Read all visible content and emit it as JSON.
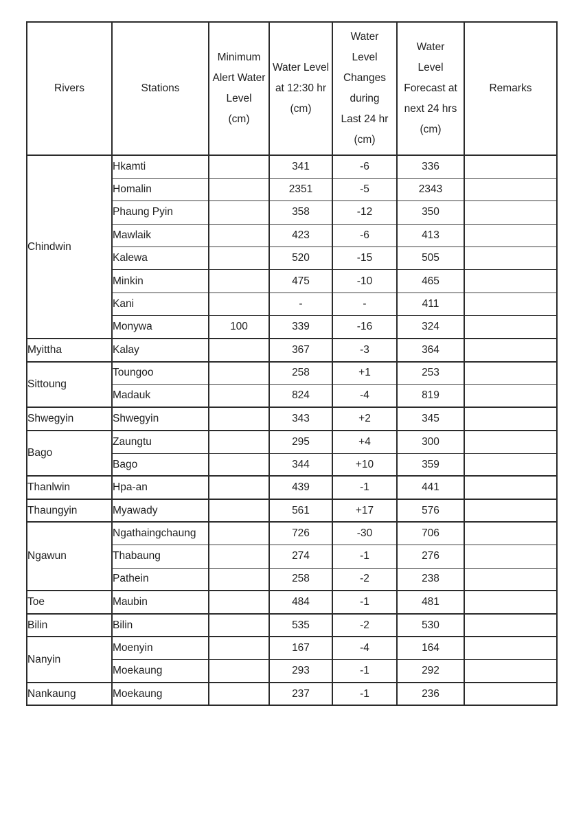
{
  "colors": {
    "background": "#ffffff",
    "border": "#2b2b2b",
    "text": "#1f1f1f"
  },
  "table": {
    "headers": [
      {
        "id": "rivers",
        "label": "Rivers"
      },
      {
        "id": "stations",
        "label": "Stations"
      },
      {
        "id": "min_alert",
        "label": "Minimum\nAlert Water\nLevel\n(cm)"
      },
      {
        "id": "water_level",
        "label": "Water Level\nat 12:30 hr\n(cm)"
      },
      {
        "id": "changes",
        "label": "Water\nLevel\nChanges\nduring\nLast 24 hr\n(cm)"
      },
      {
        "id": "forecast",
        "label": "Water\nLevel\nForecast at\nnext 24 hrs\n(cm)"
      },
      {
        "id": "remarks",
        "label": "Remarks"
      }
    ],
    "groups": [
      {
        "river": "Chindwin",
        "rows": [
          {
            "station": "Hkamti",
            "min_alert": "",
            "water_level": "341",
            "change": "-6",
            "forecast": "336",
            "remarks": ""
          },
          {
            "station": "Homalin",
            "min_alert": "",
            "water_level": "2351",
            "change": "-5",
            "forecast": "2343",
            "remarks": ""
          },
          {
            "station": "Phaung Pyin",
            "min_alert": "",
            "water_level": "358",
            "change": "-12",
            "forecast": "350",
            "remarks": ""
          },
          {
            "station": "Mawlaik",
            "min_alert": "",
            "water_level": "423",
            "change": "-6",
            "forecast": "413",
            "remarks": ""
          },
          {
            "station": "Kalewa",
            "min_alert": "",
            "water_level": "520",
            "change": "-15",
            "forecast": "505",
            "remarks": ""
          },
          {
            "station": "Minkin",
            "min_alert": "",
            "water_level": "475",
            "change": "-10",
            "forecast": "465",
            "remarks": ""
          },
          {
            "station": "Kani",
            "min_alert": "",
            "water_level": "-",
            "change": "-",
            "forecast": "411",
            "remarks": ""
          },
          {
            "station": "Monywa",
            "min_alert": "100",
            "water_level": "339",
            "change": "-16",
            "forecast": "324",
            "remarks": ""
          }
        ]
      },
      {
        "river": "Myittha",
        "rows": [
          {
            "station": "Kalay",
            "min_alert": "",
            "water_level": "367",
            "change": "-3",
            "forecast": "364",
            "remarks": ""
          }
        ]
      },
      {
        "river": "Sittoung",
        "rows": [
          {
            "station": "Toungoo",
            "min_alert": "",
            "water_level": "258",
            "change": "+1",
            "forecast": "253",
            "remarks": ""
          },
          {
            "station": "Madauk",
            "min_alert": "",
            "water_level": "824",
            "change": "-4",
            "forecast": "819",
            "remarks": ""
          }
        ]
      },
      {
        "river": "Shwegyin",
        "rows": [
          {
            "station": "Shwegyin",
            "min_alert": "",
            "water_level": "343",
            "change": "+2",
            "forecast": "345",
            "remarks": ""
          }
        ]
      },
      {
        "river": "Bago",
        "rows": [
          {
            "station": "Zaungtu",
            "min_alert": "",
            "water_level": "295",
            "change": "+4",
            "forecast": "300",
            "remarks": ""
          },
          {
            "station": "Bago",
            "min_alert": "",
            "water_level": "344",
            "change": "+10",
            "forecast": "359",
            "remarks": ""
          }
        ]
      },
      {
        "river": "Thanlwin",
        "rows": [
          {
            "station": "Hpa-an",
            "min_alert": "",
            "water_level": "439",
            "change": "-1",
            "forecast": "441",
            "remarks": ""
          }
        ]
      },
      {
        "river": "Thaungyin",
        "rows": [
          {
            "station": "Myawady",
            "min_alert": "",
            "water_level": "561",
            "change": "+17",
            "forecast": "576",
            "remarks": ""
          }
        ]
      },
      {
        "river": "Ngawun",
        "rows": [
          {
            "station": "Ngathaingchaung",
            "min_alert": "",
            "water_level": "726",
            "change": "-30",
            "forecast": "706",
            "remarks": ""
          },
          {
            "station": "Thabaung",
            "min_alert": "",
            "water_level": "274",
            "change": "-1",
            "forecast": "276",
            "remarks": ""
          },
          {
            "station": "Pathein",
            "min_alert": "",
            "water_level": "258",
            "change": "-2",
            "forecast": "238",
            "remarks": ""
          }
        ]
      },
      {
        "river": "Toe",
        "rows": [
          {
            "station": "Maubin",
            "min_alert": "",
            "water_level": "484",
            "change": "-1",
            "forecast": "481",
            "remarks": ""
          }
        ]
      },
      {
        "river": "Bilin",
        "rows": [
          {
            "station": "Bilin",
            "min_alert": "",
            "water_level": "535",
            "change": "-2",
            "forecast": "530",
            "remarks": ""
          }
        ]
      },
      {
        "river": "Nanyin",
        "rows": [
          {
            "station": "Moenyin",
            "min_alert": "",
            "water_level": "167",
            "change": "-4",
            "forecast": "164",
            "remarks": ""
          },
          {
            "station": "Moekaung",
            "min_alert": "",
            "water_level": "293",
            "change": "-1",
            "forecast": "292",
            "remarks": ""
          }
        ]
      },
      {
        "river": "Nankaung",
        "rows": [
          {
            "station": "Moekaung",
            "min_alert": "",
            "water_level": "237",
            "change": "-1",
            "forecast": "236",
            "remarks": ""
          }
        ]
      }
    ]
  }
}
